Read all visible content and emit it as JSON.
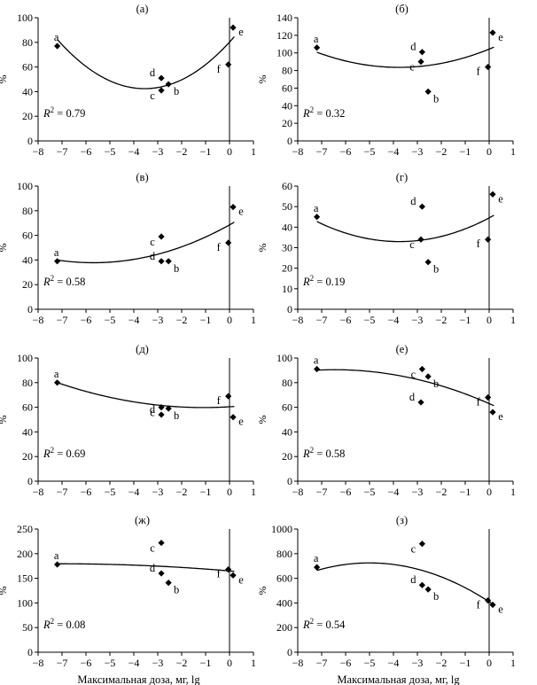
{
  "chart_data": [
    {
      "type": "scatter",
      "title": "(а)",
      "ylabel": "%",
      "xlabel": "",
      "xlim": [
        -8,
        1
      ],
      "ylim": [
        0,
        100
      ],
      "xticks": [
        -8,
        -7,
        -6,
        -5,
        -4,
        -3,
        -2,
        -1,
        0,
        1
      ],
      "yticks": [
        0,
        20,
        40,
        60,
        80,
        100
      ],
      "tick_labels_x": [
        "−8",
        "−7",
        "−6",
        "−5",
        "−4",
        "−3",
        "−2",
        "−1",
        "0",
        "1"
      ],
      "tick_labels_y": [
        "0",
        "20",
        "40",
        "60",
        "80",
        "100"
      ],
      "vline_x": 0,
      "points": [
        {
          "label": "a",
          "x": -7.2,
          "y": 77
        },
        {
          "label": "d",
          "x": -2.85,
          "y": 51
        },
        {
          "label": "c",
          "x": -2.85,
          "y": 41
        },
        {
          "label": "b",
          "x": -2.55,
          "y": 46
        },
        {
          "label": "f",
          "x": -0.05,
          "y": 62
        },
        {
          "label": "e",
          "x": 0.15,
          "y": 92
        }
      ],
      "fit": {
        "type": "quadratic",
        "coef": [
          80.2,
          21.29,
          3.0
        ]
      },
      "r2_label": "= 0.79"
    },
    {
      "type": "scatter",
      "title": "(б)",
      "ylabel": "%",
      "xlabel": "",
      "xlim": [
        -8,
        1
      ],
      "ylim": [
        0,
        140
      ],
      "xticks": [
        -8,
        -7,
        -6,
        -5,
        -4,
        -3,
        -2,
        -1,
        0,
        1
      ],
      "yticks": [
        0,
        20,
        40,
        60,
        80,
        100,
        120,
        140
      ],
      "tick_labels_x": [
        "−8",
        "−7",
        "−6",
        "−5",
        "−4",
        "−3",
        "−2",
        "−1",
        "0",
        "1"
      ],
      "tick_labels_y": [
        "0",
        "20",
        "40",
        "60",
        "80",
        "100",
        "120",
        "140"
      ],
      "vline_x": 0,
      "points": [
        {
          "label": "a",
          "x": -7.2,
          "y": 106
        },
        {
          "label": "d",
          "x": -2.8,
          "y": 101
        },
        {
          "label": "c",
          "x": -2.85,
          "y": 90
        },
        {
          "label": "b",
          "x": -2.55,
          "y": 56
        },
        {
          "label": "f",
          "x": -0.05,
          "y": 84
        },
        {
          "label": "e",
          "x": 0.15,
          "y": 123
        }
      ],
      "fit": {
        "type": "quadratic",
        "coef": [
          104.3,
          11.0,
          1.46
        ]
      },
      "r2_label": "= 0.32"
    },
    {
      "type": "scatter",
      "title": "(в)",
      "ylabel": "%",
      "xlabel": "",
      "xlim": [
        -8,
        1
      ],
      "ylim": [
        0,
        100
      ],
      "xticks": [
        -8,
        -7,
        -6,
        -5,
        -4,
        -3,
        -2,
        -1,
        0,
        1
      ],
      "yticks": [
        0,
        20,
        40,
        60,
        80,
        100
      ],
      "tick_labels_x": [
        "−8",
        "−7",
        "−6",
        "−5",
        "−4",
        "−3",
        "−2",
        "−1",
        "0",
        "1"
      ],
      "tick_labels_y": [
        "0",
        "20",
        "40",
        "60",
        "80",
        "100"
      ],
      "vline_x": 0,
      "points": [
        {
          "label": "a",
          "x": -7.2,
          "y": 39
        },
        {
          "label": "c",
          "x": -2.85,
          "y": 59
        },
        {
          "label": "d",
          "x": -2.85,
          "y": 39
        },
        {
          "label": "b",
          "x": -2.55,
          "y": 39
        },
        {
          "label": "f",
          "x": -0.05,
          "y": 54
        },
        {
          "label": "e",
          "x": 0.15,
          "y": 83
        }
      ],
      "fit": {
        "type": "quadratic",
        "coef": [
          68.5,
          10.8,
          0.95
        ]
      },
      "r2_label": "= 0.58"
    },
    {
      "type": "scatter",
      "title": "(г)",
      "ylabel": "%",
      "xlabel": "",
      "xlim": [
        -8,
        1
      ],
      "ylim": [
        0,
        60
      ],
      "xticks": [
        -8,
        -7,
        -6,
        -5,
        -4,
        -3,
        -2,
        -1,
        0,
        1
      ],
      "yticks": [
        0,
        10,
        20,
        30,
        40,
        50,
        60
      ],
      "tick_labels_x": [
        "−8",
        "−7",
        "−6",
        "−5",
        "−4",
        "−3",
        "−2",
        "−1",
        "0",
        "1"
      ],
      "tick_labels_y": [
        "0",
        "10",
        "20",
        "30",
        "40",
        "50",
        "60"
      ],
      "vline_x": 0,
      "points": [
        {
          "label": "a",
          "x": -7.2,
          "y": 45
        },
        {
          "label": "d",
          "x": -2.8,
          "y": 50
        },
        {
          "label": "c",
          "x": -2.85,
          "y": 34
        },
        {
          "label": "b",
          "x": -2.55,
          "y": 23
        },
        {
          "label": "f",
          "x": -0.05,
          "y": 34
        },
        {
          "label": "e",
          "x": 0.15,
          "y": 56
        }
      ],
      "fit": {
        "type": "quadratic",
        "coef": [
          44.5,
          6.15,
          0.82
        ]
      },
      "r2_label": "= 0.19"
    },
    {
      "type": "scatter",
      "title": "(д)",
      "ylabel": "%",
      "xlabel": "",
      "xlim": [
        -8,
        1
      ],
      "ylim": [
        0,
        100
      ],
      "xticks": [
        -8,
        -7,
        -6,
        -5,
        -4,
        -3,
        -2,
        -1,
        0,
        1
      ],
      "yticks": [
        0,
        20,
        40,
        60,
        80,
        100
      ],
      "tick_labels_x": [
        "−8",
        "−7",
        "−6",
        "−5",
        "−4",
        "−3",
        "−2",
        "−1",
        "0",
        "1"
      ],
      "tick_labels_y": [
        "0",
        "20",
        "40",
        "60",
        "80",
        "100"
      ],
      "vline_x": 0,
      "points": [
        {
          "label": "a",
          "x": -7.2,
          "y": 80
        },
        {
          "label": "c",
          "x": -2.85,
          "y": 60
        },
        {
          "label": "d",
          "x": -2.85,
          "y": 54
        },
        {
          "label": "b",
          "x": -2.55,
          "y": 59
        },
        {
          "label": "f",
          "x": -0.05,
          "y": 69
        },
        {
          "label": "e",
          "x": 0.15,
          "y": 52
        }
      ],
      "fit": {
        "type": "quadratic",
        "coef": [
          60.4,
          1.16,
          0.54
        ]
      },
      "r2_label": "= 0.69"
    },
    {
      "type": "scatter",
      "title": "(е)",
      "ylabel": "%",
      "xlabel": "",
      "xlim": [
        -8,
        1
      ],
      "ylim": [
        0,
        100
      ],
      "xticks": [
        -8,
        -7,
        -6,
        -5,
        -4,
        -3,
        -2,
        -1,
        0,
        1
      ],
      "yticks": [
        0,
        20,
        40,
        60,
        80,
        100
      ],
      "tick_labels_x": [
        "−8",
        "−7",
        "−6",
        "−5",
        "−4",
        "−3",
        "−2",
        "−1",
        "0",
        "1"
      ],
      "tick_labels_y": [
        "0",
        "20",
        "40",
        "60",
        "80",
        "100"
      ],
      "vline_x": 0,
      "points": [
        {
          "label": "a",
          "x": -7.2,
          "y": 91
        },
        {
          "label": "c",
          "x": -2.8,
          "y": 91
        },
        {
          "label": "b",
          "x": -2.55,
          "y": 85
        },
        {
          "label": "d",
          "x": -2.85,
          "y": 64
        },
        {
          "label": "f",
          "x": -0.05,
          "y": 68
        },
        {
          "label": "e",
          "x": 0.15,
          "y": 56
        }
      ],
      "fit": {
        "type": "quadratic",
        "coef": [
          63.0,
          -8.52,
          -0.66
        ]
      },
      "r2_label": "= 0.58"
    },
    {
      "type": "scatter",
      "title": "(ж)",
      "ylabel": "%",
      "xlabel": "Максимальная доза, мг, lg",
      "xlim": [
        -8,
        1
      ],
      "ylim": [
        0,
        250
      ],
      "xticks": [
        -8,
        -7,
        -6,
        -5,
        -4,
        -3,
        -2,
        -1,
        0,
        1
      ],
      "yticks": [
        0,
        50,
        100,
        150,
        200,
        250
      ],
      "tick_labels_x": [
        "−8",
        "−7",
        "−6",
        "−5",
        "−4",
        "−3",
        "−2",
        "−1",
        "0",
        "1"
      ],
      "tick_labels_y": [
        "0",
        "50",
        "100",
        "150",
        "200",
        "250"
      ],
      "vline_x": 0,
      "points": [
        {
          "label": "a",
          "x": -7.2,
          "y": 178
        },
        {
          "label": "c",
          "x": -2.85,
          "y": 222
        },
        {
          "label": "d",
          "x": -2.85,
          "y": 160
        },
        {
          "label": "b",
          "x": -2.55,
          "y": 141
        },
        {
          "label": "f",
          "x": -0.05,
          "y": 168
        },
        {
          "label": "e",
          "x": 0.15,
          "y": 156
        }
      ],
      "fit": {
        "type": "quadratic",
        "coef": [
          165.0,
          -4.1,
          -0.29
        ]
      },
      "r2_label": "= 0.08"
    },
    {
      "type": "scatter",
      "title": "(з)",
      "ylabel": "%",
      "xlabel": "Максимальная доза, мг, lg",
      "xlim": [
        -8,
        1
      ],
      "ylim": [
        0,
        1000
      ],
      "xticks": [
        -8,
        -7,
        -6,
        -5,
        -4,
        -3,
        -2,
        -1,
        0,
        1
      ],
      "yticks": [
        0,
        200,
        400,
        600,
        800,
        1000
      ],
      "tick_labels_x": [
        "−8",
        "−7",
        "−6",
        "−5",
        "−4",
        "−3",
        "−2",
        "−1",
        "0",
        "1"
      ],
      "tick_labels_y": [
        "0",
        "200",
        "400",
        "600",
        "800",
        "1000"
      ],
      "vline_x": 0,
      "points": [
        {
          "label": "a",
          "x": -7.2,
          "y": 690
        },
        {
          "label": "c",
          "x": -2.8,
          "y": 880
        },
        {
          "label": "d",
          "x": -2.8,
          "y": 545
        },
        {
          "label": "b",
          "x": -2.55,
          "y": 510
        },
        {
          "label": "f",
          "x": -0.05,
          "y": 420
        },
        {
          "label": "e",
          "x": 0.15,
          "y": 385
        }
      ],
      "fit": {
        "type": "quadratic",
        "coef": [
          410.0,
          -126.0,
          -12.6
        ]
      },
      "r2_label": "= 0.54"
    }
  ]
}
